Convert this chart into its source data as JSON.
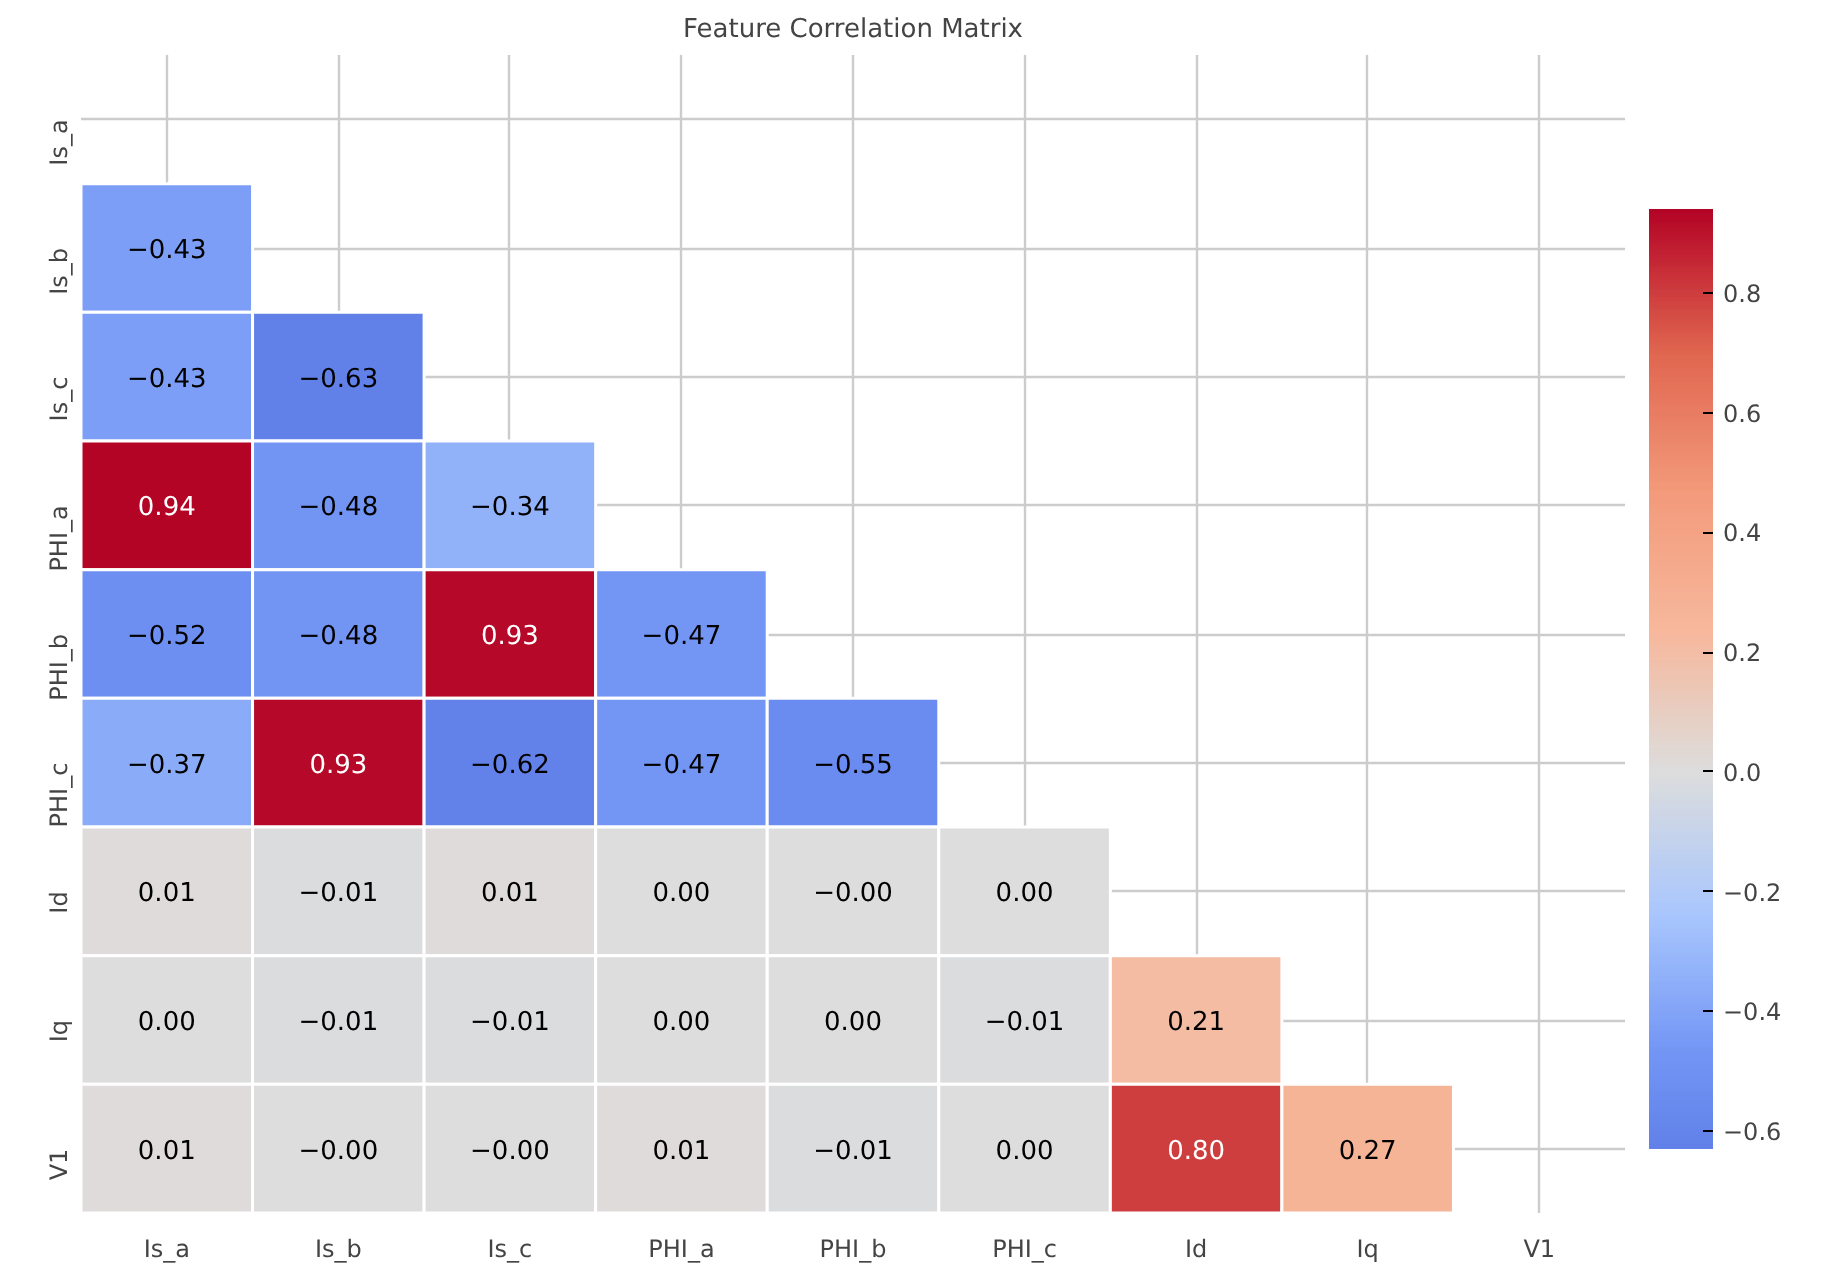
{
  "chart_data": {
    "type": "heatmap",
    "title": "Feature Correlation Matrix",
    "categories": [
      "Is_a",
      "Is_b",
      "Is_c",
      "PHI_a",
      "PHI_b",
      "PHI_c",
      "Id",
      "Iq",
      "V1"
    ],
    "y_categories": [
      "Is_a",
      "Is_b",
      "Is_c",
      "PHI_a",
      "PHI_b",
      "PHI_c",
      "Id",
      "Iq",
      "V1"
    ],
    "cells": [
      [
        null,
        null,
        null,
        null,
        null,
        null,
        null,
        null,
        null
      ],
      [
        -0.43,
        null,
        null,
        null,
        null,
        null,
        null,
        null,
        null
      ],
      [
        -0.43,
        -0.63,
        null,
        null,
        null,
        null,
        null,
        null,
        null
      ],
      [
        0.94,
        -0.48,
        -0.34,
        null,
        null,
        null,
        null,
        null,
        null
      ],
      [
        -0.52,
        -0.48,
        0.93,
        -0.47,
        null,
        null,
        null,
        null,
        null
      ],
      [
        -0.37,
        0.93,
        -0.62,
        -0.47,
        -0.55,
        null,
        null,
        null,
        null
      ],
      [
        0.01,
        -0.01,
        0.01,
        0.0,
        -0.0,
        0.0,
        null,
        null,
        null
      ],
      [
        0.0,
        -0.01,
        -0.01,
        0.0,
        0.0,
        -0.01,
        0.21,
        null,
        null
      ],
      [
        0.01,
        -0.0,
        -0.0,
        0.01,
        -0.01,
        0.0,
        0.8,
        0.27,
        null
      ]
    ],
    "cell_labels": [
      [
        null,
        null,
        null,
        null,
        null,
        null,
        null,
        null,
        null
      ],
      [
        "−0.43",
        null,
        null,
        null,
        null,
        null,
        null,
        null,
        null
      ],
      [
        "−0.43",
        "−0.63",
        null,
        null,
        null,
        null,
        null,
        null,
        null
      ],
      [
        "0.94",
        "−0.48",
        "−0.34",
        null,
        null,
        null,
        null,
        null,
        null
      ],
      [
        "−0.52",
        "−0.48",
        "0.93",
        "−0.47",
        null,
        null,
        null,
        null,
        null
      ],
      [
        "−0.37",
        "0.93",
        "−0.62",
        "−0.47",
        "−0.55",
        null,
        null,
        null,
        null
      ],
      [
        "0.01",
        "−0.01",
        "0.01",
        "0.00",
        "−0.00",
        "0.00",
        null,
        null,
        null
      ],
      [
        "0.00",
        "−0.01",
        "−0.01",
        "0.00",
        "0.00",
        "−0.01",
        "0.21",
        null,
        null
      ],
      [
        "0.01",
        "−0.00",
        "−0.00",
        "0.01",
        "−0.01",
        "0.00",
        "0.80",
        "0.27",
        null
      ]
    ],
    "clim": [
      -0.63,
      0.94
    ],
    "cticks": [
      {
        "value": -0.6,
        "label": "−0.6"
      },
      {
        "value": -0.4,
        "label": "−0.4"
      },
      {
        "value": -0.2,
        "label": "−0.2"
      },
      {
        "value": 0,
        "label": "0.0"
      },
      0.2,
      0.4,
      0.6,
      0.8
    ],
    "grid": true
  }
}
